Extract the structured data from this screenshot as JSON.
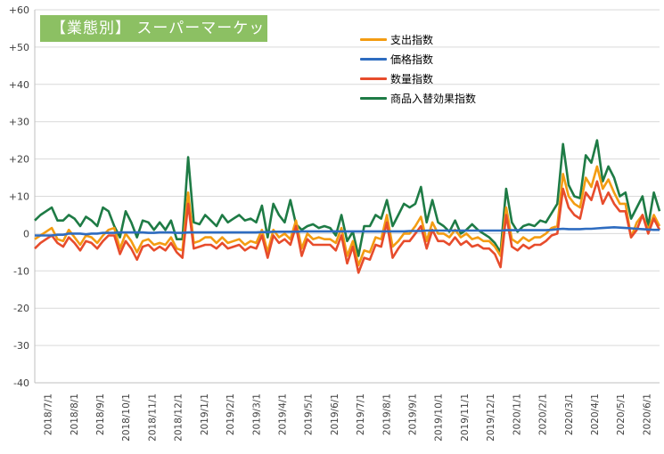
{
  "chart_data": {
    "type": "line",
    "title": "【業態別】 スーパーマーケット",
    "ylim": [
      -40,
      60
    ],
    "y_ticks": [
      "+60",
      "+50",
      "+40",
      "+30",
      "+20",
      "+10",
      "0",
      "-10",
      "-20",
      "-30",
      "-40"
    ],
    "y_tick_values": [
      60,
      50,
      40,
      30,
      20,
      10,
      0,
      -10,
      -20,
      -30,
      -40
    ],
    "x_tick_labels": [
      "2018/7/1",
      "2018/8/1",
      "2018/9/1",
      "2018/10/1",
      "2018/11/1",
      "2018/12/1",
      "2019/1/1",
      "2019/2/1",
      "2019/3/1",
      "2019/4/1",
      "2019/5/1",
      "2019/6/1",
      "2019/7/1",
      "2019/8/1",
      "2019/9/1",
      "2019/10/1",
      "2019/11/1",
      "2019/12/1",
      "2020/1/1",
      "2020/2/1",
      "2020/3/1",
      "2020/4/1",
      "2020/5/1",
      "2020/6/1"
    ],
    "grid": true,
    "legend_position": "top-center",
    "colors": {
      "支出指数": "#f39c12",
      "価格指数": "#2e6cc0",
      "数量指数": "#e74c2c",
      "商品入替効果指数": "#1e7b45",
      "title_bg": "#8cc063"
    },
    "series": [
      {
        "name": "支出指数",
        "values": [
          -1.5,
          -0.5,
          0.5,
          1.5,
          -1.5,
          -2,
          1,
          -1,
          -3,
          -0.5,
          -1,
          -2.5,
          -0.5,
          1,
          1.5,
          -4,
          0,
          -2,
          -5,
          -2,
          -1.5,
          -3,
          -2.5,
          -3,
          -1,
          -4,
          -4.5,
          11,
          -2.5,
          -2,
          -1,
          -1,
          -2.5,
          -1,
          -2.5,
          -2,
          -1.5,
          -3,
          -2,
          -2.5,
          1,
          -5,
          1,
          -1,
          0,
          -1.5,
          3.5,
          -4,
          0,
          -1.5,
          -1,
          -1.5,
          -1.5,
          -2.5,
          1.5,
          -6,
          -2,
          -8.5,
          -4.5,
          -5,
          -1,
          -1.5,
          5,
          -3.5,
          -2,
          0,
          0,
          2,
          4.5,
          -2,
          3,
          0,
          0,
          -1,
          1,
          -1,
          0,
          -1.5,
          -1,
          -2,
          -2,
          -3.5,
          -6,
          7,
          -1.5,
          -2.5,
          -1,
          -2,
          -1,
          -1,
          0,
          1.5,
          2,
          16,
          10,
          8,
          7,
          15,
          12.5,
          18,
          12,
          14.5,
          11,
          8,
          8,
          -1,
          3,
          5,
          1,
          5,
          2
        ]
      },
      {
        "name": "価格指数",
        "values": [
          -0.5,
          -0.5,
          -0.5,
          -0.5,
          -0.3,
          -0.3,
          0,
          0,
          0,
          -0.2,
          0,
          0,
          0.2,
          0.2,
          0.2,
          0.3,
          0.3,
          0.3,
          0.3,
          0.3,
          0.2,
          0.2,
          0.3,
          0.3,
          0.3,
          0.2,
          0.2,
          0.3,
          0.3,
          0.3,
          0.3,
          0.3,
          0.3,
          0.3,
          0.3,
          0.3,
          0.3,
          0.3,
          0.3,
          0.3,
          0.4,
          0.4,
          0.5,
          0.5,
          0.5,
          0.5,
          0.5,
          0.6,
          0.6,
          0.6,
          0.6,
          0.6,
          0.6,
          0.6,
          0.6,
          0.6,
          0.6,
          0.6,
          0.6,
          0.6,
          0.6,
          0.6,
          0.6,
          0.6,
          0.6,
          0.6,
          0.7,
          0.7,
          0.7,
          0.8,
          0.8,
          0.8,
          0.8,
          0.8,
          0.8,
          0.8,
          0.8,
          0.8,
          0.8,
          0.8,
          0.8,
          0.8,
          0.8,
          0.9,
          0.9,
          0.9,
          0.9,
          0.9,
          0.9,
          0.9,
          0.9,
          1,
          1.2,
          1.3,
          1.2,
          1.2,
          1.2,
          1.3,
          1.3,
          1.4,
          1.5,
          1.6,
          1.7,
          1.6,
          1.5,
          1.4,
          1.3,
          1.2,
          1.1,
          1,
          1
        ]
      },
      {
        "name": "数量指数",
        "values": [
          -4,
          -2.5,
          -1.5,
          -0.5,
          -2.5,
          -3.5,
          -1,
          -2.5,
          -4.5,
          -2,
          -2.5,
          -4,
          -2,
          -0.5,
          -0.5,
          -5.5,
          -2,
          -4,
          -7,
          -3.5,
          -3,
          -4.5,
          -3.5,
          -4.5,
          -2.5,
          -5,
          -6.5,
          8,
          -4,
          -3.5,
          -3,
          -3,
          -4,
          -2.5,
          -4,
          -3.5,
          -3,
          -4.5,
          -3.5,
          -4,
          -0.5,
          -6.5,
          -0.5,
          -2.5,
          -1.5,
          -3,
          2,
          -6,
          -1.5,
          -3,
          -3,
          -3,
          -3,
          -4.5,
          -0.5,
          -8,
          -3.5,
          -10.5,
          -6.5,
          -7,
          -3,
          -3.5,
          3,
          -6.5,
          -4,
          -2,
          -2,
          0,
          2,
          -4,
          1,
          -2,
          -2,
          -3,
          -1,
          -3,
          -2,
          -3.5,
          -3,
          -4,
          -4,
          -5.5,
          -9,
          5,
          -3.5,
          -4.5,
          -3,
          -4,
          -3,
          -3,
          -2,
          -0.5,
          0,
          12,
          7,
          5,
          4,
          11,
          9,
          14,
          8,
          11,
          8,
          6,
          6,
          -1,
          1,
          5,
          0,
          4,
          1
        ]
      },
      {
        "name": "商品入替効果指数",
        "values": [
          3.5,
          5,
          6,
          7,
          3.5,
          3.5,
          5,
          4,
          2,
          4.5,
          3.5,
          2,
          7,
          6,
          2,
          -1,
          6,
          3,
          -1,
          3.5,
          3,
          1,
          3,
          1,
          3.5,
          -1.5,
          -1.5,
          20.5,
          3,
          2.5,
          5,
          3.5,
          2,
          5,
          3,
          4,
          5,
          3.5,
          4,
          3,
          7.5,
          -1,
          8,
          5,
          3,
          9,
          2.5,
          1,
          2,
          2.5,
          1.5,
          2,
          1.5,
          -0.5,
          5,
          -2,
          0.5,
          -6,
          2,
          2,
          5,
          4,
          9,
          2,
          5,
          8,
          7,
          8,
          12.5,
          3,
          9,
          3,
          2,
          0.5,
          3.5,
          0,
          1,
          2.5,
          1,
          0,
          -1,
          -2.5,
          -5,
          12,
          3,
          0.5,
          2,
          2.5,
          2,
          3.5,
          3,
          5.5,
          8,
          24,
          13,
          10,
          9.5,
          21,
          19,
          25,
          14,
          18,
          15,
          10,
          11,
          4,
          7,
          10,
          2,
          11,
          6
        ]
      }
    ]
  }
}
